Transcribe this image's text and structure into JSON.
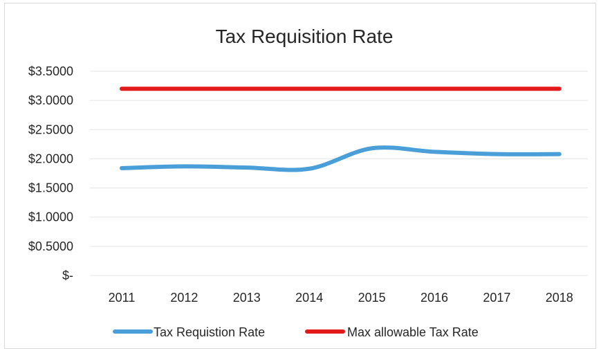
{
  "chart_data": {
    "type": "line",
    "title": "Tax Requisition Rate",
    "categories": [
      "2011",
      "2012",
      "2013",
      "2014",
      "2015",
      "2016",
      "2017",
      "2018"
    ],
    "yticks": [
      0,
      0.5,
      1.0,
      1.5,
      2.0,
      2.5,
      3.0,
      3.5
    ],
    "ytick_labels": [
      "$-",
      "$0.5000",
      "$1.0000",
      "$1.5000",
      "$2.0000",
      "$2.5000",
      "$3.0000",
      "$3.5000"
    ],
    "ylim": [
      0,
      3.5
    ],
    "grid": true,
    "legend_position": "bottom",
    "series": [
      {
        "name": "Tax Requistion Rate",
        "color": "#4a9fd8",
        "smooth": true,
        "values": [
          1.84,
          1.87,
          1.85,
          1.83,
          2.18,
          2.12,
          2.08,
          2.08
        ]
      },
      {
        "name": "Max allowable Tax Rate",
        "color": "#e31a1c",
        "smooth": false,
        "values": [
          3.2,
          3.2,
          3.2,
          3.2,
          3.2,
          3.2,
          3.2,
          3.2
        ]
      }
    ]
  }
}
